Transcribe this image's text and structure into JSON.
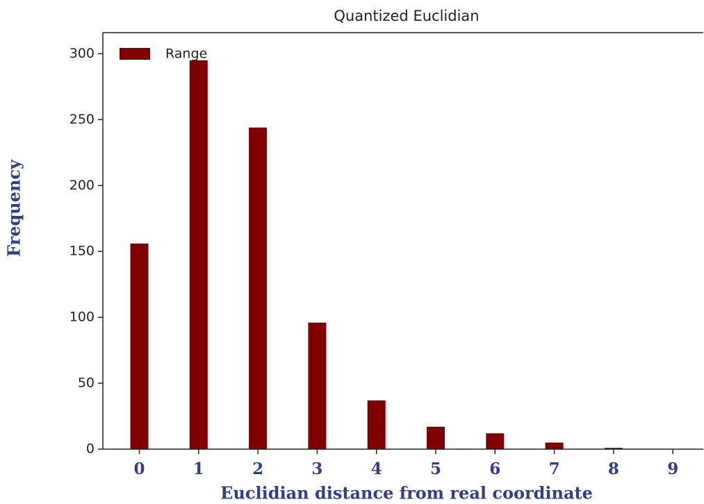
{
  "chart_data": {
    "type": "bar",
    "title": "Quantized Euclidian",
    "x_label": "Euclidian distance from real coordinate",
    "y_label": "Frequency",
    "categories": [
      "0",
      "1",
      "2",
      "3",
      "4",
      "5",
      "6",
      "7",
      "8",
      "9"
    ],
    "series": [
      {
        "name": "Range",
        "color": "#800000",
        "values": [
          156,
          295,
          244,
          96,
          37,
          17,
          12,
          5,
          1,
          0
        ]
      }
    ],
    "ylim": [
      0,
      316
    ],
    "yticks": [
      0,
      50,
      100,
      150,
      200,
      250,
      300
    ],
    "legend": "upper left"
  }
}
